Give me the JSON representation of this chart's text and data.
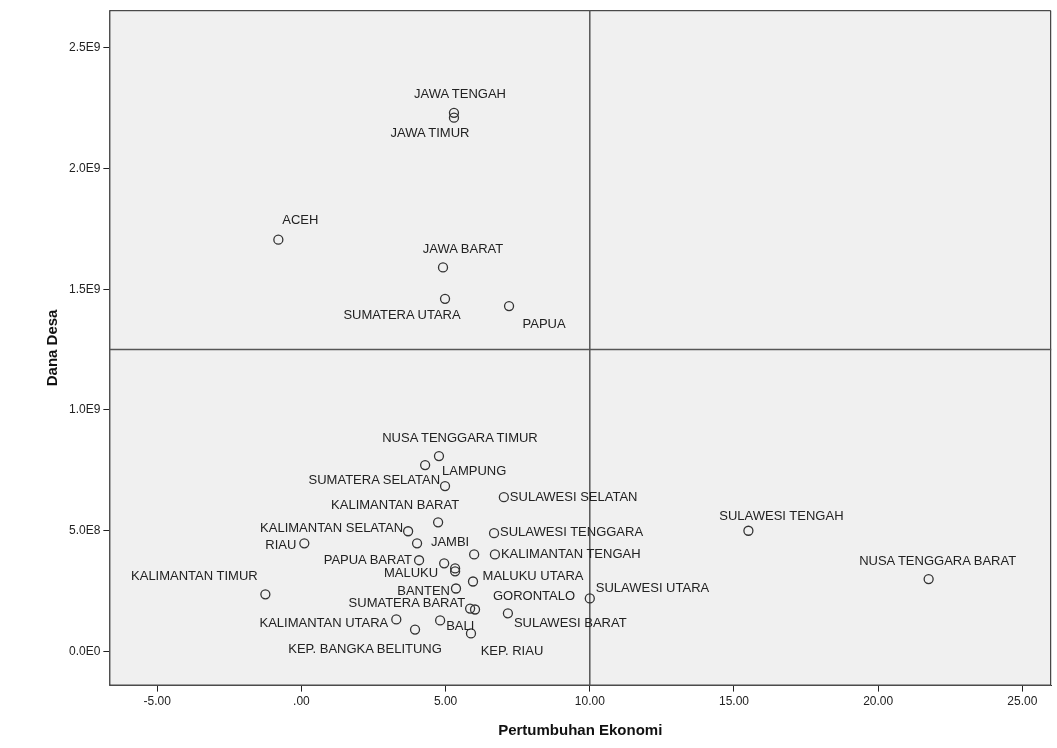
{
  "chart_data": {
    "type": "scatter",
    "xlabel": "Pertumbuhan Ekonomi",
    "ylabel": "Dana Desa",
    "x": [
      5.29,
      5.29,
      -0.8,
      4.91,
      4.98,
      7.2,
      4.77,
      4.29,
      4.98,
      7.02,
      4.74,
      3.7,
      4.01,
      6.68,
      15.5,
      0.1,
      4.08,
      4.95,
      5.33,
      5.33,
      5.99,
      6.71,
      21.75,
      -1.25,
      5.95,
      5.36,
      10.0,
      5.85,
      6.02,
      7.16,
      3.29,
      3.94,
      4.81,
      5.88
    ],
    "values": [
      2230000000.0,
      2210000000.0,
      1705000000.0,
      1590000000.0,
      1460000000.0,
      1430000000.0,
      809000000.0,
      772000000.0,
      685000000.0,
      639000000.0,
      535000000.0,
      498000000.0,
      448000000.0,
      490000000.0,
      500000000.0,
      448000000.0,
      378000000.0,
      365000000.0,
      344000000.0,
      332000000.0,
      402000000.0,
      402000000.0,
      300000000.0,
      237000000.0,
      290000000.0,
      261000000.0,
      220000000.0,
      178000000.0,
      174000000.0,
      158000000.0,
      133000000.0,
      91000000.0,
      129000000.0,
      75000000.0
    ],
    "color": "#333333",
    "marker": "circle",
    "grid": false,
    "legend": false,
    "value_labels": [
      "JAWA TENGAH",
      "JAWA TIMUR",
      "ACEH",
      "JAWA BARAT",
      "SUMATERA UTARA",
      "PAPUA",
      "NUSA TENGGARA TIMUR",
      "LAMPUNG",
      "SUMATERA SELATAN",
      "SULAWESI SELATAN",
      "KALIMANTAN BARAT",
      "KALIMANTAN SELATAN",
      "JAMBI",
      "SULAWESI TENGGARA",
      "SULAWESI TENGAH",
      "RIAU",
      "PAPUA BARAT",
      "MALUKU",
      null,
      null,
      null,
      "KALIMANTAN TENGAH",
      "NUSA TENGGARA BARAT",
      "KALIMANTAN TIMUR",
      "MALUKU UTARA",
      "BANTEN",
      "SULAWESI UTARA",
      "SUMATERA BARAT",
      "GORONTALO",
      "SULAWESI BARAT",
      "KALIMANTAN UTARA",
      "KEP. BANGKA BELITUNG",
      "BALI",
      "KEP. RIAU"
    ],
    "xlim": [
      -6.66,
      26.0
    ],
    "ylim": [
      -141000000.0,
      2655000000.0
    ],
    "xticks": [
      {
        "value": -5,
        "label": "-5.00"
      },
      {
        "value": 0,
        "label": ".00"
      },
      {
        "value": 5,
        "label": "5.00"
      },
      {
        "value": 10,
        "label": "10.00"
      },
      {
        "value": 15,
        "label": "15.00"
      },
      {
        "value": 20,
        "label": "20.00"
      },
      {
        "value": 25,
        "label": "25.00"
      }
    ],
    "yticks": [
      {
        "value": 0,
        "label": "0.0E0"
      },
      {
        "value": 500000000.0,
        "label": "5.0E8"
      },
      {
        "value": 1000000000.0,
        "label": "1.0E9"
      },
      {
        "value": 1500000000.0,
        "label": "1.5E9"
      },
      {
        "value": 2000000000.0,
        "label": "2.0E9"
      },
      {
        "value": 2500000000.0,
        "label": "2.5E9"
      }
    ],
    "ref_lines": [
      {
        "axis": "x",
        "value": 10,
        "color": "#555555"
      },
      {
        "axis": "y",
        "value": 1250000000.0,
        "color": "#555555"
      }
    ]
  }
}
